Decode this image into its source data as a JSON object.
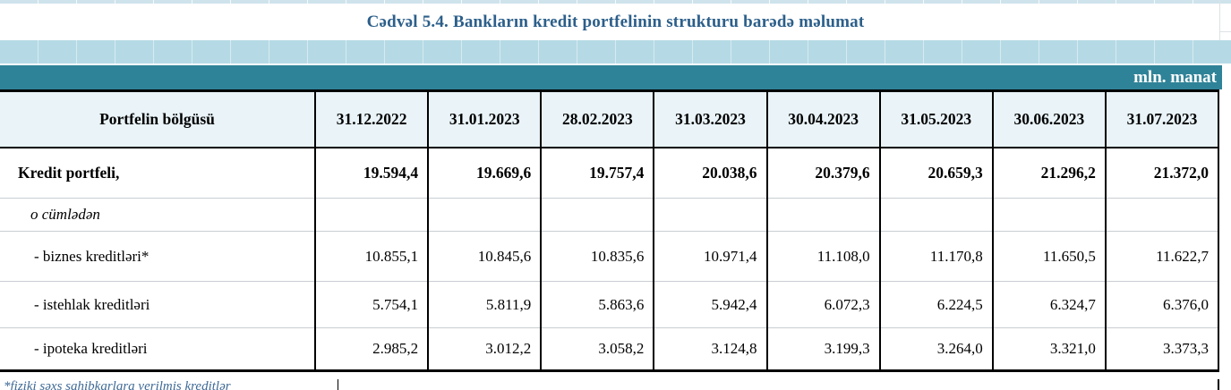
{
  "title": "Cədvəl 5.4. Bankların kredit portfelinin strukturu barədə məlumat",
  "unit_label": "mln. manat",
  "table": {
    "header_label": "Portfelin bölgüsü",
    "dates": [
      "31.12.2022",
      "31.01.2023",
      "28.02.2023",
      "31.03.2023",
      "30.04.2023",
      "31.05.2023",
      "30.06.2023",
      "31.07.2023"
    ],
    "rows": [
      {
        "label": "Kredit portfeli,",
        "style": "bold",
        "values": [
          "19.594,4",
          "19.669,6",
          "19.757,4",
          "20.038,6",
          "20.379,6",
          "20.659,3",
          "21.296,2",
          "21.372,0"
        ]
      },
      {
        "label": "o cümlədən",
        "style": "italic",
        "values": [
          "",
          "",
          "",
          "",
          "",
          "",
          "",
          ""
        ]
      },
      {
        "label": "- biznes kreditləri*",
        "style": "normal",
        "values": [
          "10.855,1",
          "10.845,6",
          "10.835,6",
          "10.971,4",
          "11.108,0",
          "11.170,8",
          "11.650,5",
          "11.622,7"
        ]
      },
      {
        "label": "- istehlak kreditləri",
        "style": "normal",
        "values": [
          "5.754,1",
          "5.811,9",
          "5.863,6",
          "5.942,4",
          "6.072,3",
          "6.224,5",
          "6.324,7",
          "6.376,0"
        ]
      },
      {
        "label": "- ipoteka kreditləri",
        "style": "normal",
        "values": [
          "2.985,2",
          "3.012,2",
          "3.058,2",
          "3.124,8",
          "3.199,3",
          "3.264,0",
          "3.321,0",
          "3.373,3"
        ]
      }
    ]
  },
  "footnote": "*fiziki şəxs sahibkarlara verilmiş kreditlər",
  "colors": {
    "title_text": "#2c5f8a",
    "light_blue_band": "#b5dae6",
    "teal_band": "#2f8398",
    "header_bg": "#e9f3f8",
    "row_separator": "#c9ced2",
    "footnote_text": "#3f6a96"
  }
}
